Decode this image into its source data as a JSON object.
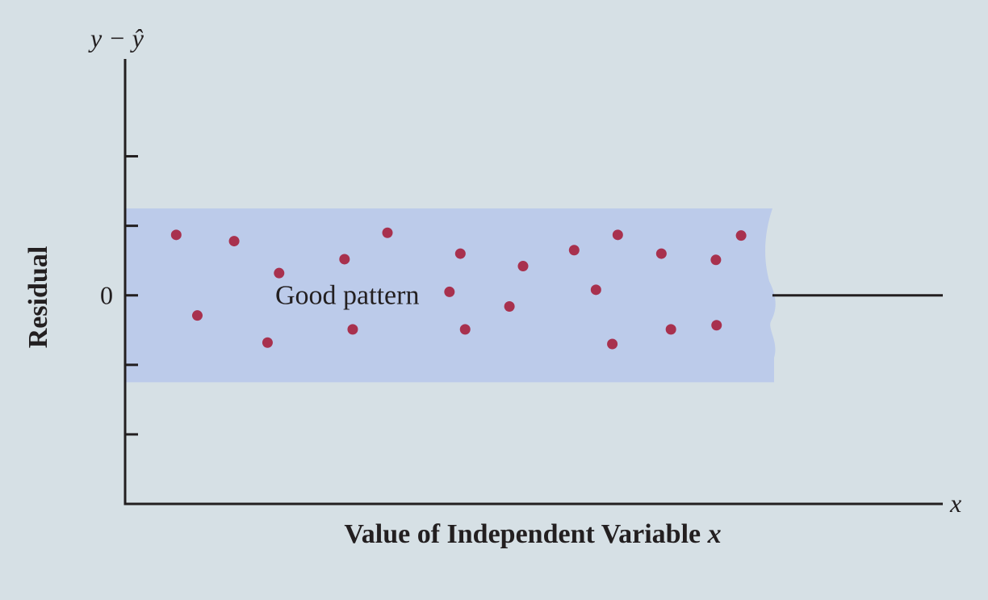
{
  "chart_data": {
    "type": "scatter",
    "title": "",
    "xlabel": "Value of Independent Variable x",
    "xlabel_parts": {
      "text": "Value of Independent Variable ",
      "var": "x"
    },
    "ylabel": "Residual",
    "y_axis_symbol": "y − ŷ",
    "x_axis_symbol": "x",
    "zero_label": "0",
    "y_tick_values": [
      2,
      1,
      0,
      -1,
      -2
    ],
    "xlim": [
      0,
      12
    ],
    "ylim": [
      -3,
      3.4
    ],
    "band": {
      "ymin": -1.25,
      "ymax": 1.25,
      "x_end": 9.5,
      "label": "Good pattern",
      "color": "#bccbea"
    },
    "point_color": "#a8314e",
    "grid": false,
    "points": [
      {
        "x": 0.75,
        "y": 0.87
      },
      {
        "x": 1.06,
        "y": -0.29
      },
      {
        "x": 1.6,
        "y": 0.78
      },
      {
        "x": 2.09,
        "y": -0.68
      },
      {
        "x": 2.26,
        "y": 0.32
      },
      {
        "x": 3.22,
        "y": 0.52
      },
      {
        "x": 3.34,
        "y": -0.49
      },
      {
        "x": 3.85,
        "y": 0.9
      },
      {
        "x": 4.76,
        "y": 0.05
      },
      {
        "x": 4.92,
        "y": 0.6
      },
      {
        "x": 4.99,
        "y": -0.49
      },
      {
        "x": 5.64,
        "y": -0.16
      },
      {
        "x": 5.84,
        "y": 0.42
      },
      {
        "x": 6.59,
        "y": 0.65
      },
      {
        "x": 6.91,
        "y": 0.08
      },
      {
        "x": 7.15,
        "y": -0.7
      },
      {
        "x": 7.23,
        "y": 0.87
      },
      {
        "x": 7.87,
        "y": 0.6
      },
      {
        "x": 8.01,
        "y": -0.49
      },
      {
        "x": 8.67,
        "y": 0.51
      },
      {
        "x": 8.68,
        "y": -0.43
      },
      {
        "x": 9.04,
        "y": 0.86
      }
    ]
  }
}
